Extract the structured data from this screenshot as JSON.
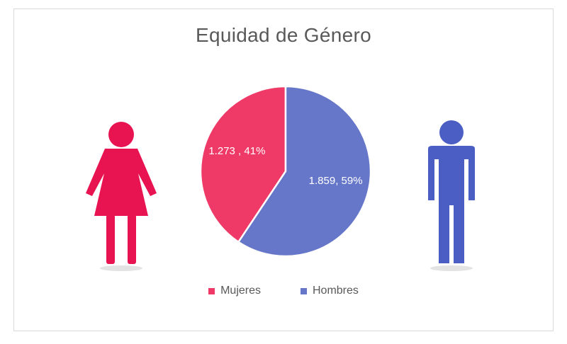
{
  "chart_data": {
    "type": "pie",
    "title": "Equidad de Género",
    "series": [
      {
        "name": "Mujeres",
        "value": 1273,
        "label": "1.273 , 41%",
        "color": "#ef3966"
      },
      {
        "name": "Hombres",
        "value": 1859,
        "label": "1.859, 59%",
        "color": "#6677c9"
      }
    ],
    "legend_position": "bottom",
    "start_angle_deg": 0,
    "direction": "counterclockwise"
  },
  "icons": {
    "left": {
      "name": "woman-icon",
      "color": "#e81452"
    },
    "right": {
      "name": "man-icon",
      "color": "#4a5ec4"
    }
  }
}
